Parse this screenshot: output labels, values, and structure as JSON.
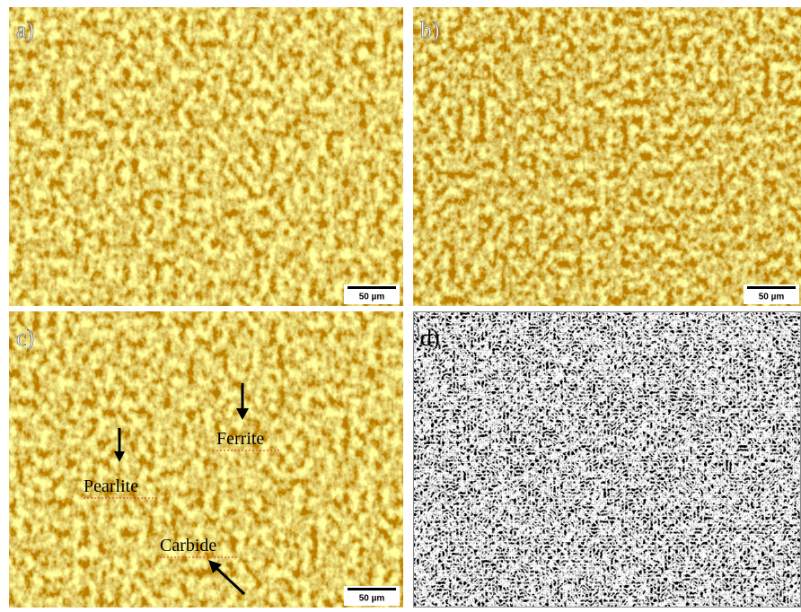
{
  "panels": [
    {
      "label": "a)",
      "scale_bar": "50 µm"
    },
    {
      "label": "b)",
      "scale_bar": "50 µm"
    },
    {
      "label": "c)",
      "scale_bar": "50 µm",
      "annotations": [
        "Ferrite",
        "Pearlite",
        "Carbide"
      ]
    },
    {
      "label": "d)"
    }
  ]
}
